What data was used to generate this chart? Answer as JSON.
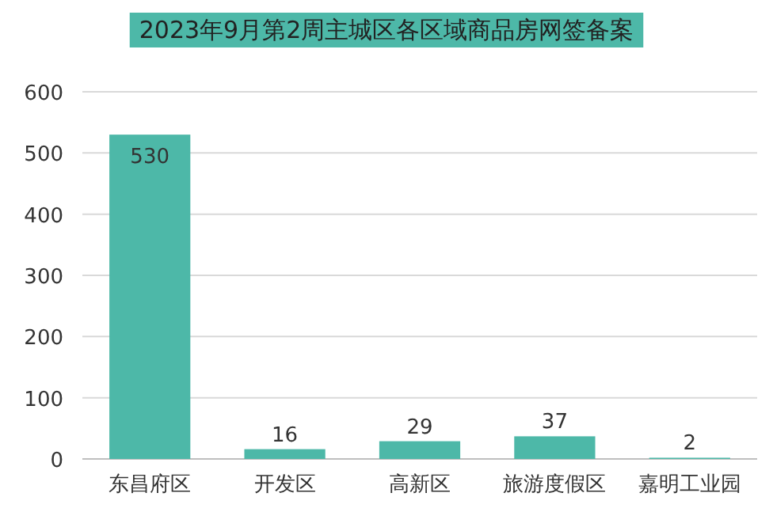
{
  "chart_data": {
    "type": "bar",
    "title": "2023年9月第2周主城区各区域商品房网签备案",
    "categories": [
      "东昌府区",
      "开发区",
      "高新区",
      "旅游度假区",
      "嘉明工业园"
    ],
    "values": [
      530,
      16,
      29,
      37,
      2
    ],
    "color": "#4db8a8",
    "ylim": [
      0,
      600
    ],
    "yticks": [
      0,
      100,
      200,
      300,
      400,
      500,
      600
    ],
    "grid": "y",
    "data_labels": true
  }
}
